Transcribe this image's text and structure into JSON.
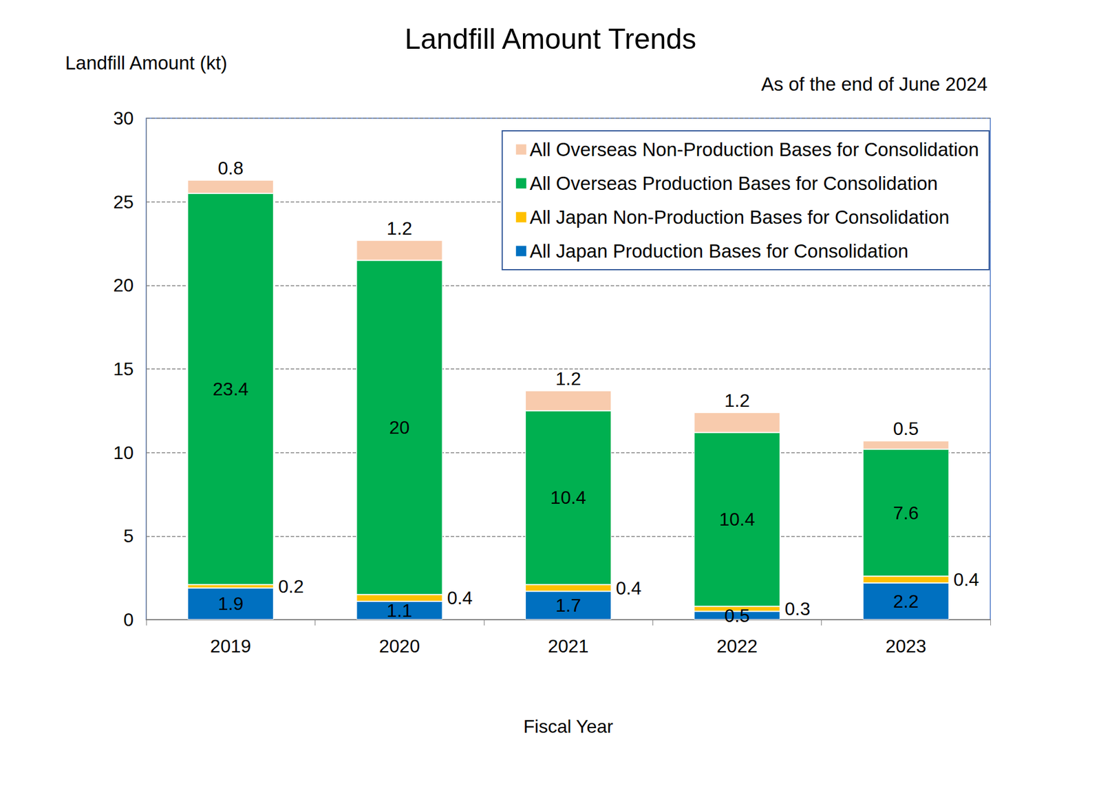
{
  "chart_data": {
    "type": "bar",
    "title": "Landfill Amount Trends",
    "subtitle": "As of the end of June 2024",
    "y_label": "Landfill Amount (kt)",
    "x_label": "Fiscal Year",
    "categories": [
      "2019",
      "2020",
      "2021",
      "2022",
      "2023"
    ],
    "series": [
      {
        "name": "All Japan Production Bases for Consolidation",
        "color": "#0070C0",
        "values": [
          1.9,
          1.1,
          1.7,
          0.5,
          2.2
        ]
      },
      {
        "name": "All Japan Non-Production Bases for Consolidation",
        "color": "#FFC000",
        "values": [
          0.2,
          0.4,
          0.4,
          0.3,
          0.4
        ]
      },
      {
        "name": "All Overseas Production Bases for Consolidation",
        "color": "#00B050",
        "values": [
          23.4,
          20,
          10.4,
          10.4,
          7.6
        ]
      },
      {
        "name": "All Overseas Non-Production Bases for Consolidation",
        "color": "#F8CBAD",
        "values": [
          0.8,
          1.2,
          1.2,
          1.2,
          0.5
        ]
      }
    ],
    "ylim": [
      0,
      30
    ],
    "yticks": [
      0,
      5,
      10,
      15,
      20,
      25,
      30
    ],
    "grid": true,
    "stacked": true,
    "data_labels": true,
    "legend": "upper right"
  }
}
